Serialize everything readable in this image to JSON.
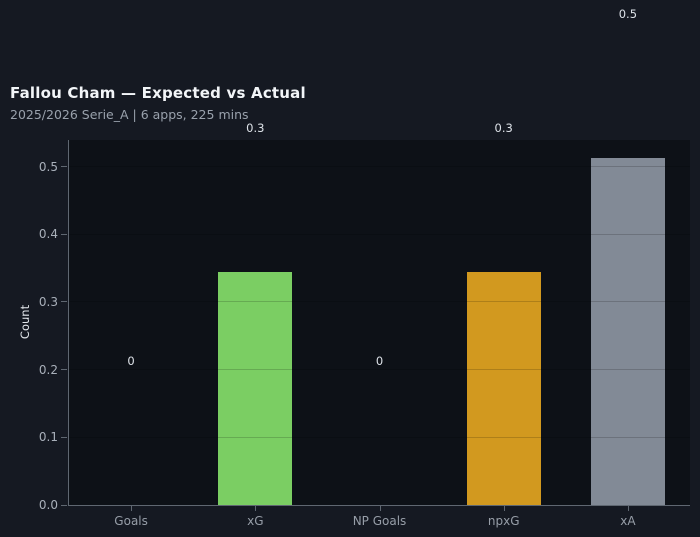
{
  "header": {
    "title": "Fallou Cham — Expected vs Actual",
    "subtitle": "2025/2026 Serie_A | 6 apps, 225 mins"
  },
  "chart_data": {
    "type": "bar",
    "title": "Fallou Cham — Expected vs Actual",
    "subtitle": "2025/2026 Serie_A | 6 apps, 225 mins",
    "categories": [
      "Goals",
      "xG",
      "NP Goals",
      "npxG",
      "xA"
    ],
    "values": [
      0,
      0.345,
      0,
      0.345,
      0.513
    ],
    "bar_labels": [
      "0",
      "0.3",
      "0",
      "0.3",
      "0.5"
    ],
    "bar_colors": [
      "#7bce63",
      "#7bce63",
      "#d2991f",
      "#d2991f",
      "#828a96"
    ],
    "xlabel": "",
    "ylabel": "Count",
    "yticks": [
      0,
      0.1,
      0.2,
      0.3,
      0.4,
      0.5
    ],
    "ytick_labels": [
      "0.0",
      "0.1",
      "0.2",
      "0.3",
      "0.4",
      "0.5"
    ],
    "ylim": [
      0,
      0.5394
    ],
    "grid": true,
    "legend_position": "none"
  },
  "colors": {
    "page_bg": "#151922",
    "plot_bg": "#0d1117",
    "title_text": "#f2f5f8",
    "subtitle_text": "#99a1ac",
    "ytick_text": "#a9b0ba",
    "xtick_text": "#979ea8",
    "value_label_text": "#dde2e8",
    "ylabel_text": "#e3e7ec",
    "spine": "#5f6771",
    "gridline": "rgba(0,0,0,0.17)"
  }
}
